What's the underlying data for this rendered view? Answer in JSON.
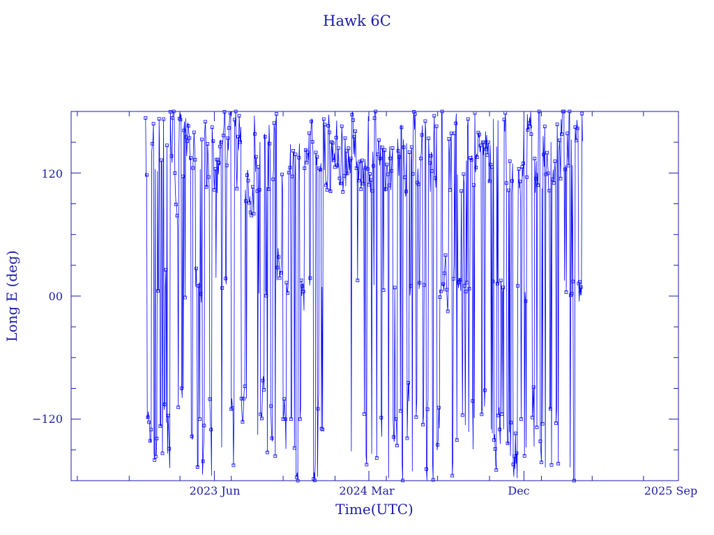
{
  "chart_data": {
    "type": "line",
    "title": "Hawk 6C",
    "xlabel": "Time(UTC)",
    "ylabel": "Long E (deg)",
    "x_ticks": [
      "2023 Jun",
      "2024 Mar",
      "Dec",
      "2025 Sep"
    ],
    "y_ticks": [
      "−120",
      "00",
      "120"
    ],
    "y_tick_values": [
      -120,
      0,
      120
    ],
    "ylim": [
      -180,
      180
    ],
    "xlim": [
      "2022-09-20",
      "2025-09-01"
    ],
    "x_tick_dates": [
      "2023-06-01",
      "2024-03-01",
      "2024-12-01",
      "2025-09-01"
    ],
    "series_color": "#0000ff",
    "axis_color": "#1a1aa8",
    "marker": "open-square",
    "data_date_range": [
      "2023-01-30",
      "2025-03-15"
    ],
    "data_note_points": [
      {
        "date": "2023-01-30",
        "value": 170
      },
      {
        "date": "2023-02-05",
        "value": -120
      },
      {
        "date": "2023-02-15",
        "value": 5
      },
      {
        "date": "2023-03-10",
        "value": 130
      },
      {
        "date": "2023-04-01",
        "value": -90
      },
      {
        "date": "2023-05-01",
        "value": 10
      },
      {
        "date": "2023-06-01",
        "value": 150
      },
      {
        "date": "2023-07-01",
        "value": -100
      },
      {
        "date": "2023-08-01",
        "value": 10
      },
      {
        "date": "2023-09-01",
        "value": 130
      },
      {
        "date": "2023-10-01",
        "value": -120
      },
      {
        "date": "2023-11-01",
        "value": 140
      },
      {
        "date": "2023-12-01",
        "value": -110
      },
      {
        "date": "2024-01-01",
        "value": 120
      },
      {
        "date": "2024-02-01",
        "value": -115
      },
      {
        "date": "2024-03-01",
        "value": 130
      },
      {
        "date": "2024-04-01",
        "value": -120
      },
      {
        "date": "2024-05-01",
        "value": 10
      },
      {
        "date": "2024-06-01",
        "value": 140
      },
      {
        "date": "2024-07-01",
        "value": -110
      },
      {
        "date": "2024-08-01",
        "value": 10
      },
      {
        "date": "2024-09-01",
        "value": 150
      },
      {
        "date": "2024-10-01",
        "value": -130
      },
      {
        "date": "2024-11-01",
        "value": 10
      },
      {
        "date": "2024-12-01",
        "value": 120
      },
      {
        "date": "2025-01-01",
        "value": -110
      },
      {
        "date": "2025-02-01",
        "value": 140
      },
      {
        "date": "2025-03-10",
        "value": 5
      },
      {
        "date": "2025-03-15",
        "value": 130
      }
    ]
  }
}
